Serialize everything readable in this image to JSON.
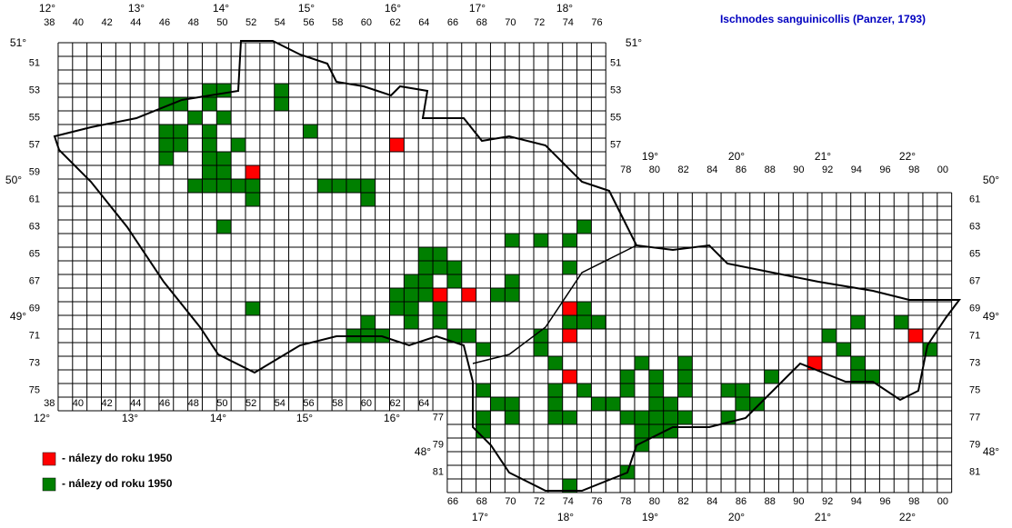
{
  "title": "Ischnodes sanguinicollis (Panzer, 1793)",
  "columns_top_west": [
    "38",
    "40",
    "42",
    "44",
    "46",
    "48",
    "50",
    "52",
    "54",
    "56",
    "58",
    "60",
    "62",
    "64",
    "66",
    "68",
    "70",
    "72",
    "74",
    "76"
  ],
  "columns_bottom_west": [
    "38",
    "40",
    "42",
    "44",
    "46",
    "48",
    "50",
    "52",
    "54",
    "56",
    "58",
    "60",
    "62",
    "64"
  ],
  "columns_top_east": [
    "78",
    "80",
    "82",
    "84",
    "86",
    "88",
    "90",
    "92",
    "94",
    "96",
    "98",
    "00"
  ],
  "columns_bottom_east": [
    "66",
    "68",
    "70",
    "72",
    "74",
    "76",
    "78",
    "80",
    "82",
    "84",
    "86",
    "88",
    "90",
    "92",
    "94",
    "96",
    "98",
    "00"
  ],
  "rows_left_west": [
    "51",
    "53",
    "55",
    "57",
    "59",
    "61",
    "63",
    "65",
    "67",
    "69",
    "71",
    "73",
    "75"
  ],
  "rows_right_west": [
    "51",
    "53",
    "55",
    "57"
  ],
  "rows_right_east": [
    "61",
    "63",
    "65",
    "67",
    "69",
    "71",
    "73",
    "75",
    "77",
    "79",
    "81"
  ],
  "rows_left_south": [
    "77",
    "79",
    "81"
  ],
  "longitudes_top_west": [
    "12°",
    "13°",
    "14°",
    "15°",
    "16°",
    "17°",
    "18°"
  ],
  "longitudes_top_east": [
    "19°",
    "20°",
    "21°",
    "22°"
  ],
  "longitudes_bottom_west": [
    "12°",
    "13°",
    "14°",
    "15°",
    "16°"
  ],
  "longitudes_bottom_east": [
    "17°",
    "18°",
    "19°",
    "20°",
    "21°",
    "22°"
  ],
  "latitudes_left": [
    "51°",
    "50°",
    "49°",
    "48°"
  ],
  "latitudes_right": [
    "51°",
    "50°",
    "49°",
    "48°"
  ],
  "legend": [
    {
      "label": "- nálezy do roku 1950",
      "color": "#ff0000",
      "squares": [
        [
          62,
          57
        ],
        [
          52,
          59
        ],
        [
          65,
          68
        ],
        [
          67,
          68
        ],
        [
          74,
          69
        ],
        [
          74,
          71
        ],
        [
          98,
          71
        ],
        [
          91,
          73
        ],
        [
          74,
          74
        ]
      ]
    },
    {
      "label": "- nálezy od roku 1950",
      "color": "#007f00",
      "squares": [
        [
          49,
          53
        ],
        [
          50,
          53
        ],
        [
          54,
          53
        ],
        [
          46,
          54
        ],
        [
          47,
          54
        ],
        [
          49,
          54
        ],
        [
          54,
          54
        ],
        [
          48,
          55
        ],
        [
          50,
          55
        ],
        [
          46,
          56
        ],
        [
          47,
          56
        ],
        [
          49,
          56
        ],
        [
          56,
          56
        ],
        [
          46,
          57
        ],
        [
          47,
          57
        ],
        [
          49,
          57
        ],
        [
          51,
          57
        ],
        [
          46,
          58
        ],
        [
          49,
          58
        ],
        [
          50,
          58
        ],
        [
          49,
          59
        ],
        [
          50,
          59
        ],
        [
          48,
          60
        ],
        [
          49,
          60
        ],
        [
          50,
          60
        ],
        [
          51,
          60
        ],
        [
          52,
          60
        ],
        [
          57,
          60
        ],
        [
          58,
          60
        ],
        [
          59,
          60
        ],
        [
          60,
          60
        ],
        [
          52,
          61
        ],
        [
          60,
          61
        ],
        [
          50,
          63
        ],
        [
          75,
          63
        ],
        [
          70,
          64
        ],
        [
          72,
          64
        ],
        [
          74,
          64
        ],
        [
          64,
          65
        ],
        [
          65,
          65
        ],
        [
          64,
          66
        ],
        [
          65,
          66
        ],
        [
          66,
          66
        ],
        [
          74,
          66
        ],
        [
          63,
          67
        ],
        [
          64,
          67
        ],
        [
          66,
          67
        ],
        [
          70,
          67
        ],
        [
          62,
          68
        ],
        [
          63,
          68
        ],
        [
          64,
          68
        ],
        [
          69,
          68
        ],
        [
          70,
          68
        ],
        [
          52,
          69
        ],
        [
          62,
          69
        ],
        [
          63,
          69
        ],
        [
          65,
          69
        ],
        [
          75,
          69
        ],
        [
          60,
          70
        ],
        [
          63,
          70
        ],
        [
          65,
          70
        ],
        [
          74,
          70
        ],
        [
          75,
          70
        ],
        [
          76,
          70
        ],
        [
          94,
          70
        ],
        [
          97,
          70
        ],
        [
          59,
          71
        ],
        [
          60,
          71
        ],
        [
          61,
          71
        ],
        [
          66,
          71
        ],
        [
          67,
          71
        ],
        [
          72,
          71
        ],
        [
          92,
          71
        ],
        [
          68,
          72
        ],
        [
          72,
          72
        ],
        [
          93,
          72
        ],
        [
          99,
          72
        ],
        [
          73,
          73
        ],
        [
          79,
          73
        ],
        [
          82,
          73
        ],
        [
          94,
          73
        ],
        [
          78,
          74
        ],
        [
          80,
          74
        ],
        [
          82,
          74
        ],
        [
          88,
          74
        ],
        [
          94,
          74
        ],
        [
          95,
          74
        ],
        [
          68,
          75
        ],
        [
          73,
          75
        ],
        [
          75,
          75
        ],
        [
          78,
          75
        ],
        [
          80,
          75
        ],
        [
          82,
          75
        ],
        [
          85,
          75
        ],
        [
          86,
          75
        ],
        [
          69,
          76
        ],
        [
          70,
          76
        ],
        [
          73,
          76
        ],
        [
          76,
          76
        ],
        [
          77,
          76
        ],
        [
          80,
          76
        ],
        [
          81,
          76
        ],
        [
          86,
          76
        ],
        [
          87,
          76
        ],
        [
          68,
          77
        ],
        [
          70,
          77
        ],
        [
          73,
          77
        ],
        [
          74,
          77
        ],
        [
          78,
          77
        ],
        [
          79,
          77
        ],
        [
          80,
          77
        ],
        [
          81,
          77
        ],
        [
          82,
          77
        ],
        [
          85,
          77
        ],
        [
          68,
          78
        ],
        [
          79,
          78
        ],
        [
          80,
          78
        ],
        [
          81,
          78
        ],
        [
          79,
          79
        ],
        [
          78,
          81
        ],
        [
          74,
          82
        ]
      ]
    }
  ]
}
